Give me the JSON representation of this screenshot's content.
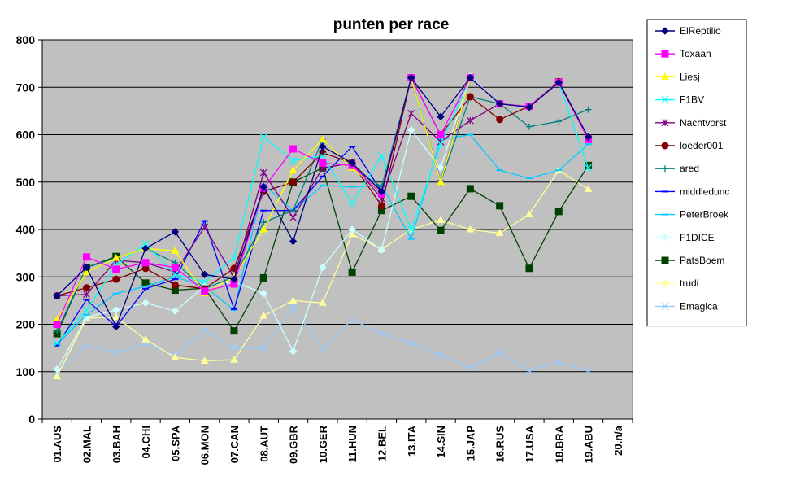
{
  "chart_data": {
    "type": "line",
    "title": "punten per race",
    "xlabel": "",
    "ylabel": "",
    "ylim": [
      0,
      800
    ],
    "yticks": [
      0,
      100,
      200,
      300,
      400,
      500,
      600,
      700,
      800
    ],
    "grid": "horizontal",
    "legend_position": "right",
    "plot_background": "#c0c0c0",
    "categories": [
      "01.AUS",
      "02.MAL",
      "03.BAH",
      "04.CHI",
      "05.SPA",
      "06.MON",
      "07.CAN",
      "08.AUT",
      "09.GBR",
      "10.GER",
      "11.HUN",
      "12.BEL",
      "13.ITA",
      "14.SIN",
      "15.JAP",
      "16.RUS",
      "17.USA",
      "18.BRA",
      "19.ABU",
      "20.n/a"
    ],
    "series": [
      {
        "name": "ElReptilio",
        "color": "#000080",
        "marker": "diamond",
        "values": [
          260,
          320,
          195,
          360,
          395,
          305,
          295,
          490,
          375,
          575,
          540,
          480,
          720,
          638,
          720,
          665,
          658,
          710,
          595,
          null
        ]
      },
      {
        "name": "Toxaan",
        "color": "#ff00ff",
        "marker": "square",
        "values": [
          200,
          342,
          316,
          330,
          320,
          270,
          285,
          487,
          570,
          540,
          535,
          475,
          720,
          600,
          720,
          665,
          660,
          710,
          590,
          null
        ]
      },
      {
        "name": "Liesj",
        "color": "#ffff00",
        "marker": "triangle",
        "values": [
          210,
          310,
          340,
          360,
          355,
          265,
          300,
          400,
          525,
          590,
          530,
          480,
          720,
          500,
          720,
          665,
          660,
          710,
          590,
          null
        ]
      },
      {
        "name": "F1BV",
        "color": "#00ffff",
        "marker": "x",
        "values": [
          160,
          230,
          325,
          370,
          305,
          290,
          340,
          595,
          545,
          555,
          455,
          555,
          400,
          580,
          720,
          665,
          660,
          710,
          530,
          null
        ]
      },
      {
        "name": "Nachtvorst",
        "color": "#800080",
        "marker": "star",
        "values": [
          260,
          263,
          335,
          330,
          310,
          405,
          300,
          520,
          425,
          530,
          540,
          465,
          645,
          585,
          630,
          665,
          660,
          712,
          593,
          null
        ]
      },
      {
        "name": "loeder001",
        "color": "#800000",
        "marker": "circle",
        "values": [
          260,
          277,
          295,
          318,
          283,
          275,
          318,
          480,
          500,
          562,
          540,
          450,
          720,
          600,
          680,
          632,
          660,
          712,
          593,
          null
        ]
      },
      {
        "name": "ared",
        "color": "#008080",
        "marker": "plus",
        "values": [
          185,
          320,
          340,
          360,
          330,
          275,
          300,
          415,
          440,
          590,
          530,
          490,
          720,
          500,
          680,
          665,
          617,
          628,
          653,
          null
        ]
      },
      {
        "name": "middledunc",
        "color": "#0000ff",
        "marker": "dash",
        "values": [
          155,
          252,
          195,
          275,
          295,
          418,
          232,
          440,
          440,
          512,
          575,
          480,
          720,
          502,
          720,
          665,
          660,
          712,
          593,
          null
        ]
      },
      {
        "name": "PeterBroek",
        "color": "#00ccff",
        "marker": "dash",
        "values": [
          158,
          220,
          265,
          280,
          300,
          280,
          230,
          495,
          440,
          493,
          490,
          493,
          380,
          590,
          600,
          525,
          508,
          525,
          580,
          null
        ]
      },
      {
        "name": "F1DICE",
        "color": "#ccffff",
        "marker": "diamond",
        "values": [
          105,
          215,
          230,
          245,
          228,
          280,
          290,
          265,
          143,
          320,
          400,
          357,
          610,
          530,
          723,
          665,
          660,
          712,
          593,
          null
        ]
      },
      {
        "name": "PatsBoem",
        "color": "#004000",
        "marker": "square",
        "values": [
          180,
          320,
          343,
          287,
          272,
          276,
          186,
          298,
          500,
          530,
          310,
          440,
          470,
          398,
          486,
          450,
          318,
          438,
          535,
          null
        ]
      },
      {
        "name": "trudi",
        "color": "#ffff99",
        "marker": "triangle",
        "values": [
          90,
          213,
          215,
          168,
          130,
          123,
          125,
          218,
          250,
          245,
          390,
          358,
          400,
          420,
          400,
          392,
          432,
          525,
          485,
          null
        ]
      },
      {
        "name": "Emagica",
        "color": "#99ccff",
        "marker": "x",
        "values": [
          100,
          155,
          140,
          160,
          135,
          188,
          150,
          150,
          235,
          148,
          210,
          180,
          160,
          135,
          108,
          140,
          102,
          120,
          102,
          null
        ]
      }
    ]
  }
}
